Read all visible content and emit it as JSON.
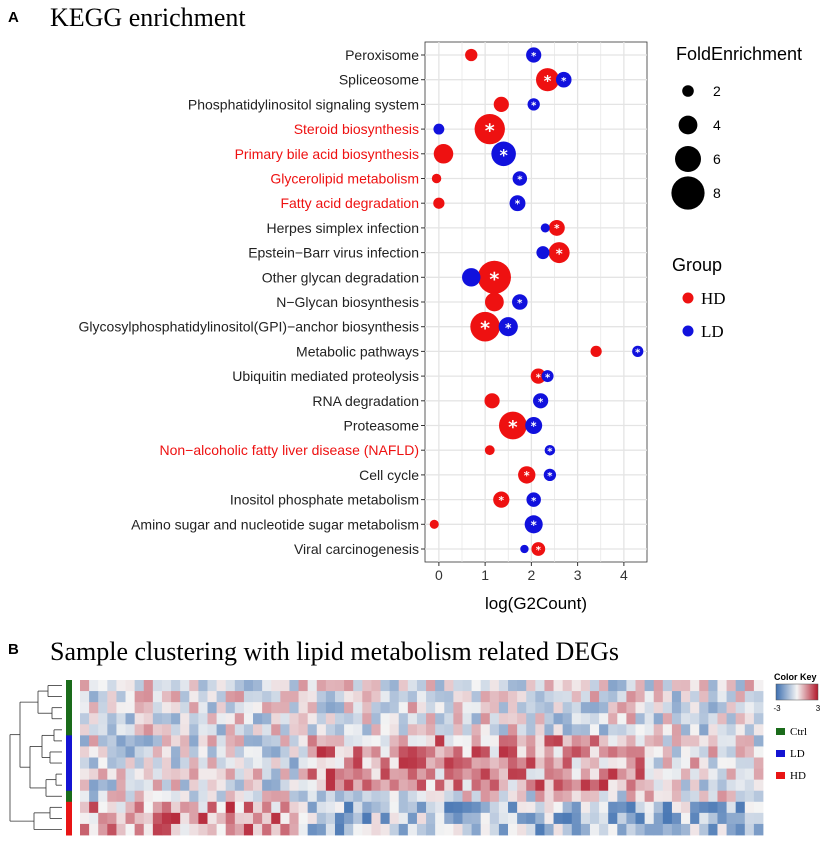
{
  "panel_a": {
    "letter": "A",
    "title": "KEGG enrichment"
  },
  "panel_b": {
    "letter": "B",
    "title": "Sample clustering with lipid metabolism related DEGs"
  },
  "colors": {
    "HD": "#ee1111",
    "LD": "#1111dd",
    "highlight_label": "#ee1111",
    "normal_label": "#222222",
    "grid": "#e4e4e4",
    "panel_bg": "#ffffff",
    "heat_low": "#3d6fb0",
    "heat_mid": "#f4f4f4",
    "heat_high": "#b2182b",
    "track_ctrl": "#1a6b1a",
    "track_ld": "#1414d2",
    "track_hd": "#e81414"
  },
  "chart_data": [
    {
      "type": "scatter",
      "subtype": "bubble",
      "title": "KEGG enrichment",
      "xlabel": "log(G2Count)",
      "ylabel": "",
      "xlim": [
        -0.3,
        4.5
      ],
      "xticks": [
        0,
        1,
        2,
        3,
        4
      ],
      "grid": true,
      "categories": [
        "Peroxisome",
        "Spliceosome",
        "Phosphatidylinositol signaling system",
        "Steroid biosynthesis",
        "Primary bile acid biosynthesis",
        "Glycerolipid metabolism",
        "Fatty acid degradation",
        "Herpes simplex infection",
        "Epstein−Barr virus infection",
        "Other glycan degradation",
        "N−Glycan biosynthesis",
        "Glycosylphosphatidylinositol(GPI)−anchor biosynthesis",
        "Metabolic pathways",
        "Ubiquitin mediated proteolysis",
        "RNA degradation",
        "Proteasome",
        "Non−alcoholic fatty liver disease (NAFLD)",
        "Cell cycle",
        "Inositol phosphate metabolism",
        "Amino sugar and nucleotide sugar metabolism",
        "Viral carcinogenesis"
      ],
      "highlighted_categories": [
        "Steroid biosynthesis",
        "Primary bile acid biosynthesis",
        "Glycerolipid metabolism",
        "Fatty acid degradation",
        "Non−alcoholic fatty liver disease (NAFLD)"
      ],
      "series": [
        {
          "name": "HD",
          "color": "#ee1111",
          "points": [
            {
              "category": "Peroxisome",
              "x": 0.7,
              "size": 2.2,
              "significant": false
            },
            {
              "category": "Spliceosome",
              "x": 2.35,
              "size": 5.2,
              "significant": true
            },
            {
              "category": "Phosphatidylinositol signaling system",
              "x": 1.35,
              "size": 3.0,
              "significant": false
            },
            {
              "category": "Steroid biosynthesis",
              "x": 1.1,
              "size": 7.2,
              "significant": true
            },
            {
              "category": "Primary bile acid biosynthesis",
              "x": 0.1,
              "size": 4.2,
              "significant": false
            },
            {
              "category": "Glycerolipid metabolism",
              "x": -0.05,
              "size": 1.4,
              "significant": false
            },
            {
              "category": "Fatty acid degradation",
              "x": 0.0,
              "size": 1.9,
              "significant": false
            },
            {
              "category": "Herpes simplex infection",
              "x": 2.55,
              "size": 3.2,
              "significant": true
            },
            {
              "category": "Epstein−Barr virus infection",
              "x": 2.6,
              "size": 4.6,
              "significant": true
            },
            {
              "category": "Other glycan degradation",
              "x": 1.2,
              "size": 8.0,
              "significant": true
            },
            {
              "category": "N−Glycan biosynthesis",
              "x": 1.2,
              "size": 4.0,
              "significant": false
            },
            {
              "category": "Glycosylphosphatidylinositol(GPI)−anchor biosynthesis",
              "x": 1.0,
              "size": 7.0,
              "significant": true
            },
            {
              "category": "Metabolic pathways",
              "x": 3.4,
              "size": 1.9,
              "significant": false
            },
            {
              "category": "Ubiquitin mediated proteolysis",
              "x": 2.15,
              "size": 3.0,
              "significant": true
            },
            {
              "category": "RNA degradation",
              "x": 1.15,
              "size": 3.0,
              "significant": false
            },
            {
              "category": "Proteasome",
              "x": 1.6,
              "size": 6.5,
              "significant": true
            },
            {
              "category": "Non−alcoholic fatty liver disease (NAFLD)",
              "x": 1.1,
              "size": 1.5,
              "significant": false
            },
            {
              "category": "Cell cycle",
              "x": 1.9,
              "size": 3.6,
              "significant": true
            },
            {
              "category": "Inositol phosphate metabolism",
              "x": 1.35,
              "size": 3.3,
              "significant": true
            },
            {
              "category": "Amino sugar and nucleotide sugar metabolism",
              "x": -0.1,
              "size": 1.3,
              "significant": false
            },
            {
              "category": "Viral carcinogenesis",
              "x": 2.15,
              "size": 2.6,
              "significant": true
            }
          ]
        },
        {
          "name": "LD",
          "color": "#1111dd",
          "points": [
            {
              "category": "Peroxisome",
              "x": 2.05,
              "size": 3.0,
              "significant": true
            },
            {
              "category": "Spliceosome",
              "x": 2.7,
              "size": 3.1,
              "significant": true
            },
            {
              "category": "Phosphatidylinositol signaling system",
              "x": 2.05,
              "size": 2.2,
              "significant": true
            },
            {
              "category": "Steroid biosynthesis",
              "x": 0.0,
              "size": 1.8,
              "significant": false
            },
            {
              "category": "Primary bile acid biosynthesis",
              "x": 1.4,
              "size": 5.6,
              "significant": true
            },
            {
              "category": "Glycerolipid metabolism",
              "x": 1.75,
              "size": 2.8,
              "significant": true
            },
            {
              "category": "Fatty acid degradation",
              "x": 1.7,
              "size": 3.2,
              "significant": true
            },
            {
              "category": "Herpes simplex infection",
              "x": 2.3,
              "size": 1.3,
              "significant": false
            },
            {
              "category": "Epstein−Barr virus infection",
              "x": 2.25,
              "size": 2.4,
              "significant": false
            },
            {
              "category": "Other glycan degradation",
              "x": 0.7,
              "size": 3.9,
              "significant": false
            },
            {
              "category": "N−Glycan biosynthesis",
              "x": 1.75,
              "size": 3.1,
              "significant": true
            },
            {
              "category": "Glycosylphosphatidylinositol(GPI)−anchor biosynthesis",
              "x": 1.5,
              "size": 4.1,
              "significant": true
            },
            {
              "category": "Metabolic pathways",
              "x": 4.3,
              "size": 1.9,
              "significant": true
            },
            {
              "category": "Ubiquitin mediated proteolysis",
              "x": 2.35,
              "size": 2.1,
              "significant": true
            },
            {
              "category": "RNA degradation",
              "x": 2.2,
              "size": 3.0,
              "significant": true
            },
            {
              "category": "Proteasome",
              "x": 2.05,
              "size": 3.5,
              "significant": true
            },
            {
              "category": "Non−alcoholic fatty liver disease (NAFLD)",
              "x": 2.4,
              "size": 1.7,
              "significant": true
            },
            {
              "category": "Cell cycle",
              "x": 2.4,
              "size": 2.2,
              "significant": true
            },
            {
              "category": "Inositol phosphate metabolism",
              "x": 2.05,
              "size": 2.8,
              "significant": true
            },
            {
              "category": "Amino sugar and nucleotide sugar metabolism",
              "x": 2.05,
              "size": 3.8,
              "significant": true
            },
            {
              "category": "Viral carcinogenesis",
              "x": 1.85,
              "size": 1.1,
              "significant": false
            }
          ]
        }
      ],
      "size_legend": {
        "title": "FoldEnrichment",
        "values": [
          2,
          4,
          6,
          8
        ]
      },
      "color_legend": {
        "title": "Group",
        "entries": [
          "HD",
          "LD"
        ]
      },
      "significance_marker": "*"
    },
    {
      "type": "heatmap",
      "title": "Sample clustering with lipid metabolism related DEGs",
      "rows": 14,
      "columns": 75,
      "value_range": [
        -3,
        3
      ],
      "row_groups": [
        "Ctrl",
        "Ctrl",
        "Ctrl",
        "Ctrl",
        "Ctrl",
        "LD",
        "LD",
        "LD",
        "LD",
        "LD",
        "Ctrl",
        "HD",
        "HD",
        "HD"
      ],
      "color_key": {
        "title": "Color Key",
        "min_label": "-3",
        "max_label": "3"
      },
      "group_legend": [
        "Ctrl",
        "LD",
        "HD"
      ],
      "dendrogram": "rows"
    }
  ]
}
